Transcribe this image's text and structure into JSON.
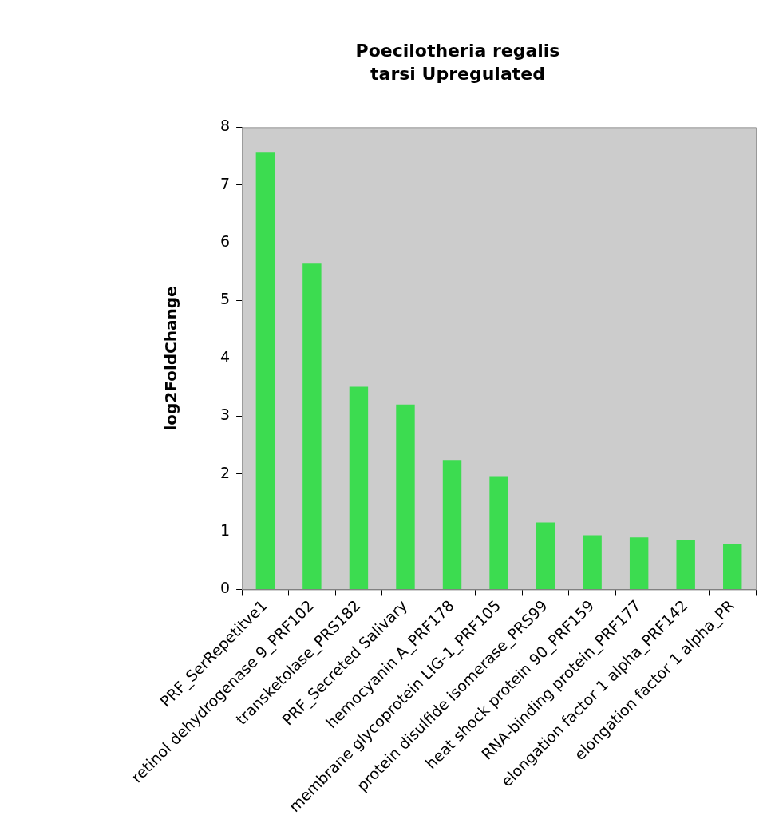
{
  "chart_data": {
    "type": "bar",
    "title": "Poecilotheria regalis\ntarsi Upregulated",
    "ylabel": "log2FoldChange",
    "categories": [
      "PRF_SerRepetitve1",
      "retinol dehydrogenase 9_PRF102",
      "transketolase_PRS182",
      "PRF_Secreted Salivary",
      "hemocyanin A_PRF178",
      "membrane glycoprotein LIG-1_PRF105",
      "protein disulfide isomerase_PRS99",
      "heat shock protein 90_PRF159",
      "RNA-binding protein_PRF177",
      "elongation factor 1 alpha_PRF142",
      "elongation factor 1 alpha_PR"
    ],
    "values": [
      7.56,
      5.64,
      3.51,
      3.2,
      2.24,
      1.96,
      1.16,
      0.94,
      0.9,
      0.86,
      0.79
    ],
    "color": "#3cdc50",
    "ylim": [
      0,
      8
    ],
    "yticks": [
      0,
      1,
      2,
      3,
      4,
      5,
      6,
      7,
      8
    ],
    "grid": false,
    "legend": false
  }
}
